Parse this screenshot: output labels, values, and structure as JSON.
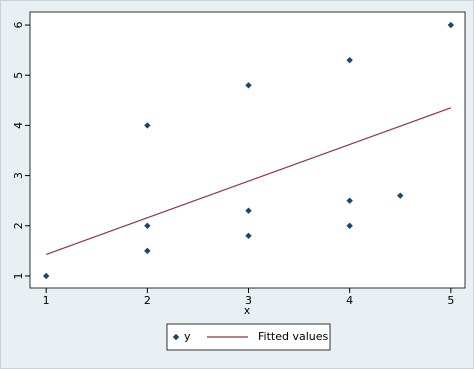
{
  "chart_data": {
    "type": "scatter",
    "xlabel": "x",
    "series": [
      {
        "name": "y",
        "type": "scatter",
        "color": "#1a476f",
        "x": [
          1,
          2,
          2,
          2,
          3,
          3,
          3,
          4,
          4,
          4,
          4.5,
          5
        ],
        "values": [
          1,
          4,
          2,
          1.5,
          4.8,
          2.3,
          1.8,
          5.3,
          2.5,
          2,
          2.6,
          6
        ]
      },
      {
        "name": "Fitted values",
        "type": "line",
        "color": "#90353b",
        "x": [
          1,
          5
        ],
        "values": [
          1.43,
          4.35
        ]
      }
    ],
    "xlim": [
      0.84,
      5.14
    ],
    "ylim": [
      0.76,
      6.26
    ],
    "xticks": [
      1,
      2,
      3,
      4,
      5
    ],
    "yticks": [
      1,
      2,
      3,
      4,
      5,
      6
    ],
    "grid": false,
    "legend": "bottom"
  }
}
